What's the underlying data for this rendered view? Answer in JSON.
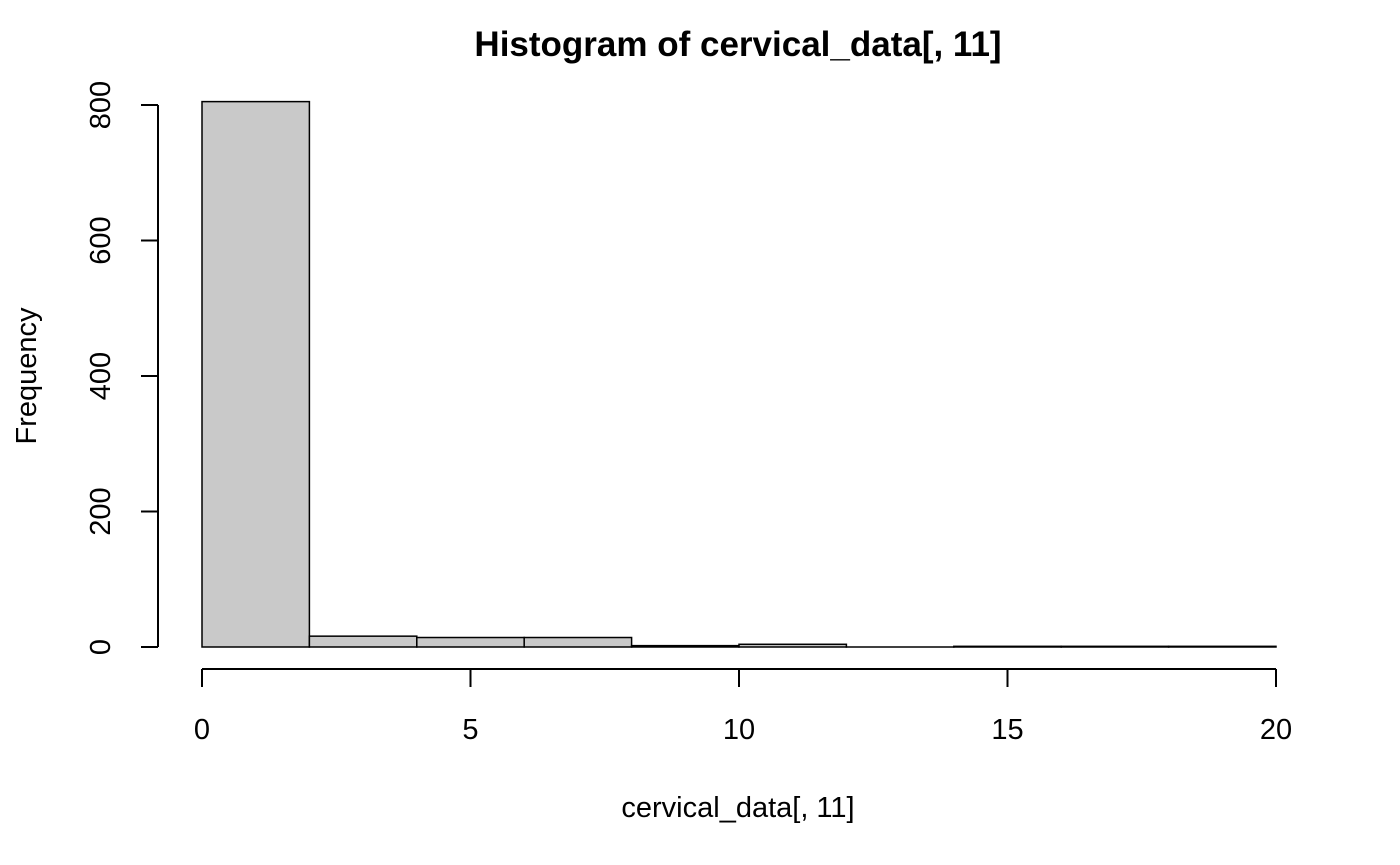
{
  "chart_data": {
    "type": "bar",
    "title": "Histogram of cervical_data[, 11]",
    "xlabel": "cervical_data[, 11]",
    "ylabel": "Frequency",
    "bins": [
      {
        "x0": 0,
        "x1": 2,
        "count": 805
      },
      {
        "x0": 2,
        "x1": 4,
        "count": 16
      },
      {
        "x0": 4,
        "x1": 6,
        "count": 14
      },
      {
        "x0": 6,
        "x1": 8,
        "count": 14
      },
      {
        "x0": 8,
        "x1": 10,
        "count": 2
      },
      {
        "x0": 10,
        "x1": 12,
        "count": 4
      },
      {
        "x0": 12,
        "x1": 14,
        "count": 0
      },
      {
        "x0": 14,
        "x1": 16,
        "count": 1
      },
      {
        "x0": 16,
        "x1": 18,
        "count": 1
      },
      {
        "x0": 18,
        "x1": 20,
        "count": 1
      }
    ],
    "xlim": [
      0,
      20
    ],
    "ylim": [
      0,
      805
    ],
    "x_ticks": [
      0,
      5,
      10,
      15,
      20
    ],
    "x_tick_labels": [
      "0",
      "5",
      "10",
      "15",
      "20"
    ],
    "y_ticks": [
      0,
      200,
      400,
      600,
      800
    ],
    "y_tick_labels": [
      "0",
      "200",
      "400",
      "600",
      "800"
    ],
    "bar_fill": "#c9c9c9",
    "bar_stroke": "#000000",
    "grid": false
  }
}
